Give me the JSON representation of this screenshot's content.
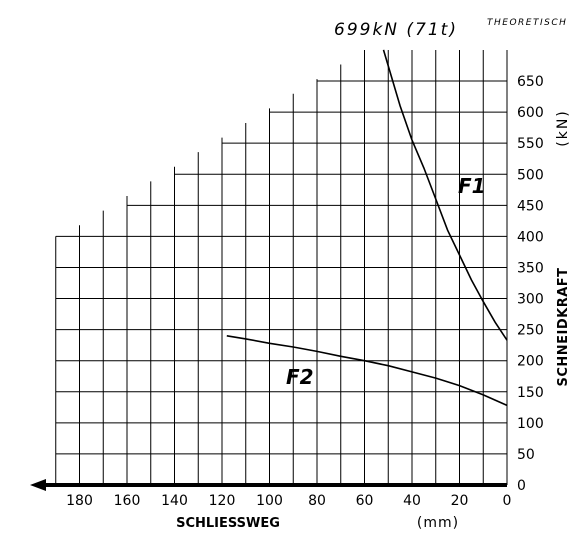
{
  "chart_data": {
    "type": "line",
    "annotations": {
      "capacity": "699kN (71t)",
      "theoretical": "THEORETISCH"
    },
    "xlabel": "SCHLIESSWEG",
    "xunit": "(mm)",
    "ylabel": "SCHNEIDKRAFT",
    "yunit": "(kN)",
    "x_direction": "reversed",
    "xlim": [
      0,
      195
    ],
    "ylim": [
      0,
      700
    ],
    "x_ticks": [
      0,
      20,
      40,
      60,
      80,
      100,
      120,
      140,
      160,
      180
    ],
    "y_ticks": [
      0,
      50,
      100,
      150,
      200,
      250,
      300,
      350,
      400,
      450,
      500,
      550,
      600,
      650
    ],
    "grid": true,
    "series": [
      {
        "name": "F1",
        "x": [
          52,
          45,
          40,
          35,
          30,
          25,
          20,
          15,
          10,
          5,
          0
        ],
        "y": [
          700,
          610,
          555,
          510,
          460,
          410,
          370,
          330,
          295,
          262,
          233
        ]
      },
      {
        "name": "F2",
        "x": [
          118,
          110,
          100,
          90,
          80,
          70,
          60,
          50,
          40,
          30,
          20,
          10,
          0
        ],
        "y": [
          240,
          235,
          228,
          222,
          215,
          207,
          200,
          192,
          182,
          172,
          160,
          145,
          128
        ]
      }
    ]
  },
  "colors": {
    "line": "#000000",
    "background": "#ffffff"
  }
}
